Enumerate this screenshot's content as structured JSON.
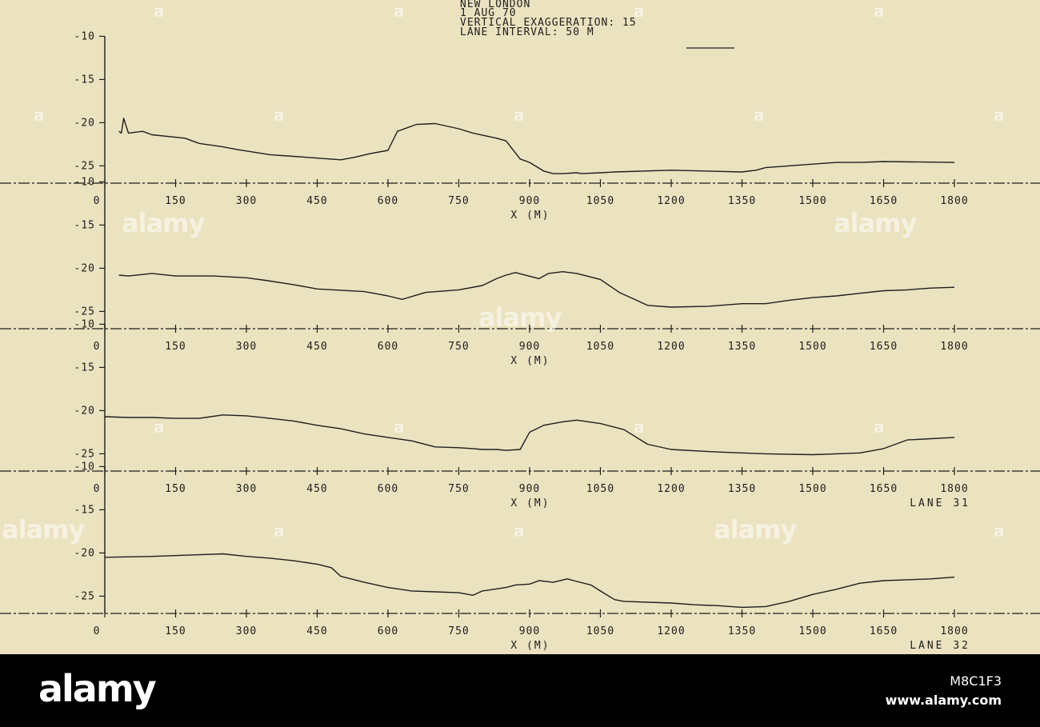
{
  "header": {
    "line1": "NEW LONDON",
    "line2": "1 AUG 70",
    "line3": "VERTICAL EXAGGERATION: 15",
    "line4": "LANE INTERVAL: 50 M"
  },
  "footer": {
    "logo": "alamy",
    "image_id": "M8C1F3",
    "url": "www.alamy.com"
  },
  "watermark": {
    "text": "alamy",
    "small": "a"
  },
  "chart_data": [
    {
      "type": "line",
      "xlabel": "X (M)",
      "lane_label": "",
      "x_ticks": [
        0,
        150,
        300,
        450,
        600,
        750,
        900,
        1050,
        1200,
        1350,
        1500,
        1650,
        1800
      ],
      "y_ticks": [
        -10,
        -15,
        -20,
        -25
      ],
      "xlim": [
        0,
        1800
      ],
      "ylim": [
        -27,
        -10
      ],
      "series": [
        {
          "x": [
            30,
            35,
            40,
            50,
            80,
            100,
            170,
            200,
            250,
            280,
            350,
            400,
            500,
            530,
            560,
            600,
            620,
            660,
            700,
            750,
            780,
            830,
            850,
            880,
            900,
            930,
            950,
            970,
            1000,
            1010,
            1050,
            1080,
            1200,
            1350,
            1380,
            1400,
            1500,
            1550,
            1600,
            1650,
            1800
          ],
          "y": [
            -21,
            -21.2,
            -19.5,
            -21.2,
            -21,
            -21.4,
            -21.8,
            -22.4,
            -22.8,
            -23.1,
            -23.7,
            -23.9,
            -24.3,
            -24,
            -23.6,
            -23.2,
            -21,
            -20.2,
            -20.1,
            -20.7,
            -21.2,
            -21.8,
            -22.1,
            -24.2,
            -24.6,
            -25.6,
            -25.9,
            -25.9,
            -25.8,
            -25.9,
            -25.8,
            -25.7,
            -25.5,
            -25.7,
            -25.5,
            -25.2,
            -24.8,
            -24.6,
            -24.6,
            -24.5,
            -24.6
          ]
        }
      ]
    },
    {
      "type": "line",
      "xlabel": "X (M)",
      "lane_label": "",
      "x_ticks": [
        0,
        150,
        300,
        450,
        600,
        750,
        900,
        1050,
        1200,
        1350,
        1500,
        1650,
        1800
      ],
      "y_ticks": [
        -10,
        -15,
        -20,
        -25
      ],
      "xlim": [
        0,
        1800
      ],
      "ylim": [
        -27,
        -10
      ],
      "series": [
        {
          "x": [
            30,
            50,
            100,
            150,
            230,
            300,
            340,
            400,
            450,
            550,
            580,
            600,
            630,
            680,
            750,
            800,
            830,
            850,
            870,
            920,
            940,
            970,
            1000,
            1050,
            1090,
            1130,
            1150,
            1200,
            1280,
            1350,
            1400,
            1450,
            1500,
            1550,
            1600,
            1650,
            1700,
            1750,
            1800
          ],
          "y": [
            -20.8,
            -20.9,
            -20.6,
            -20.9,
            -20.9,
            -21.1,
            -21.4,
            -21.9,
            -22.4,
            -22.7,
            -23,
            -23.2,
            -23.6,
            -22.8,
            -22.5,
            -22,
            -21.2,
            -20.8,
            -20.5,
            -21.2,
            -20.6,
            -20.4,
            -20.6,
            -21.3,
            -22.8,
            -23.8,
            -24.3,
            -24.5,
            -24.4,
            -24.1,
            -24.1,
            -23.7,
            -23.4,
            -23.2,
            -22.9,
            -22.6,
            -22.5,
            -22.3,
            -22.2
          ]
        }
      ]
    },
    {
      "type": "line",
      "xlabel": "X (M)",
      "lane_label": "LANE 31",
      "x_ticks": [
        0,
        150,
        300,
        450,
        600,
        750,
        900,
        1050,
        1200,
        1350,
        1500,
        1650,
        1800
      ],
      "y_ticks": [
        -10,
        -15,
        -20,
        -25
      ],
      "xlim": [
        0,
        1800
      ],
      "ylim": [
        -27,
        -10
      ],
      "series": [
        {
          "x": [
            0,
            50,
            100,
            150,
            200,
            250,
            300,
            350,
            400,
            450,
            500,
            550,
            600,
            650,
            700,
            750,
            780,
            800,
            830,
            850,
            880,
            900,
            930,
            950,
            970,
            1000,
            1050,
            1100,
            1150,
            1200,
            1300,
            1400,
            1500,
            1550,
            1600,
            1650,
            1700,
            1800
          ],
          "y": [
            -20.7,
            -20.8,
            -20.8,
            -20.9,
            -20.9,
            -20.5,
            -20.6,
            -20.9,
            -21.2,
            -21.7,
            -22.1,
            -22.7,
            -23.1,
            -23.5,
            -24.2,
            -24.3,
            -24.4,
            -24.5,
            -24.5,
            -24.6,
            -24.5,
            -22.5,
            -21.7,
            -21.5,
            -21.3,
            -21.1,
            -21.5,
            -22.2,
            -23.9,
            -24.5,
            -24.8,
            -25,
            -25.1,
            -25,
            -24.9,
            -24.4,
            -23.4,
            -23.1
          ]
        }
      ]
    },
    {
      "type": "line",
      "xlabel": "X (M)",
      "lane_label": "LANE 32",
      "x_ticks": [
        0,
        150,
        300,
        450,
        600,
        750,
        900,
        1050,
        1200,
        1350,
        1500,
        1650,
        1800
      ],
      "y_ticks": [
        -10,
        -15,
        -20,
        -25
      ],
      "xlim": [
        0,
        1800
      ],
      "ylim": [
        -27,
        -10
      ],
      "series": [
        {
          "x": [
            0,
            100,
            200,
            250,
            300,
            350,
            400,
            450,
            480,
            500,
            550,
            600,
            650,
            700,
            750,
            780,
            800,
            850,
            870,
            900,
            920,
            950,
            980,
            1000,
            1030,
            1050,
            1080,
            1100,
            1200,
            1250,
            1300,
            1350,
            1400,
            1450,
            1500,
            1550,
            1600,
            1650,
            1700,
            1750,
            1800
          ],
          "y": [
            -20.5,
            -20.4,
            -20.2,
            -20.1,
            -20.4,
            -20.6,
            -20.9,
            -21.3,
            -21.7,
            -22.7,
            -23.4,
            -24,
            -24.4,
            -24.5,
            -24.6,
            -24.9,
            -24.4,
            -24,
            -23.7,
            -23.6,
            -23.2,
            -23.4,
            -23,
            -23.3,
            -23.7,
            -24.4,
            -25.4,
            -25.6,
            -25.8,
            -26,
            -26.1,
            -26.3,
            -26.2,
            -25.6,
            -24.8,
            -24.2,
            -23.5,
            -23.2,
            -23.1,
            -23,
            -22.8
          ]
        }
      ]
    }
  ]
}
